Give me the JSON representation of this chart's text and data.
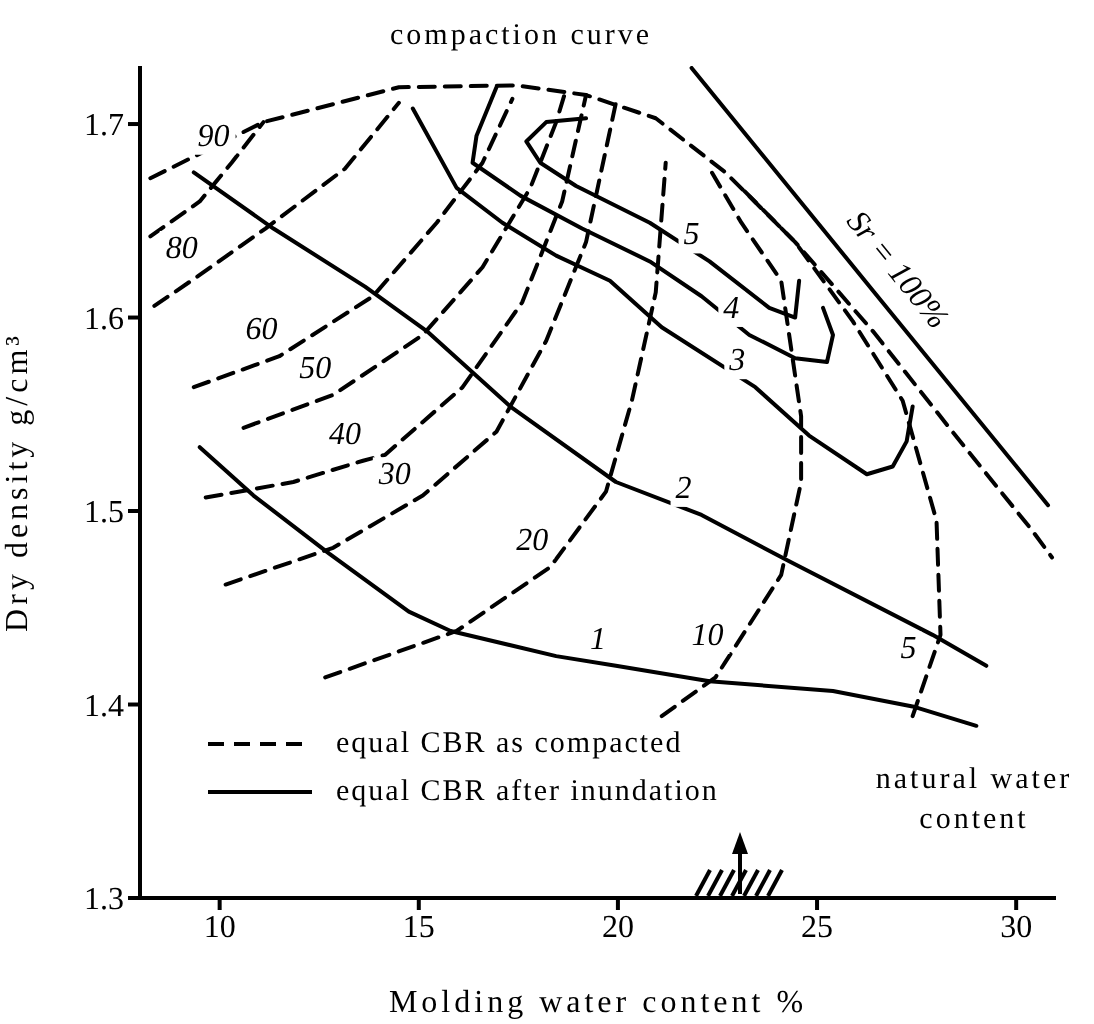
{
  "chart_data": {
    "type": "line",
    "xlabel": "Molding water content %",
    "ylabel": "Dry density g/cm³",
    "xlim": [
      8,
      31
    ],
    "xticks": [
      10,
      15,
      20,
      25,
      30
    ],
    "ylim": [
      1.3,
      1.73
    ],
    "yticks": [
      1.3,
      1.4,
      1.5,
      1.6,
      1.7
    ],
    "legend": "bottom left",
    "marker": "none",
    "series": [
      {
        "name": "equal CBR as compacted",
        "color": "#000000",
        "line_style": "dashed",
        "x": [
          8.26,
          11.1,
          14.5,
          17.45,
          19.2,
          20.95,
          22.7,
          24.45,
          26.4,
          28.4,
          30.4,
          30.9
        ],
        "values": [
          1.672,
          1.701,
          1.719,
          1.72,
          1.715,
          1.703,
          1.675,
          1.639,
          1.593,
          1.541,
          1.49,
          1.476
        ]
      },
      {
        "color": "#000000",
        "line_style": "dashed",
        "x": [
          8.26,
          9.5,
          10.3,
          11.1
        ],
        "values": [
          1.642,
          1.66,
          1.68,
          1.701
        ]
      },
      {
        "color": "#000000",
        "line_style": "dashed",
        "x": [
          8.36,
          9.5,
          11.15,
          13.15,
          14.5
        ],
        "values": [
          1.606,
          1.622,
          1.646,
          1.677,
          1.711
        ]
      },
      {
        "color": "#000000",
        "line_style": "dashed",
        "x": [
          9.35,
          11.5,
          13.85,
          15.45,
          16.6,
          17.35
        ],
        "values": [
          1.564,
          1.58,
          1.611,
          1.649,
          1.68,
          1.713
        ]
      },
      {
        "color": "#000000",
        "line_style": "dashed",
        "x": [
          10.6,
          12.85,
          15.1,
          16.6,
          17.8,
          18.45,
          18.7
        ],
        "values": [
          1.543,
          1.56,
          1.591,
          1.626,
          1.667,
          1.701,
          1.718
        ]
      },
      {
        "color": "#000000",
        "line_style": "dashed",
        "x": [
          9.65,
          11.85,
          13.6,
          14.15,
          16.1,
          17.6,
          18.6,
          19.2
        ],
        "values": [
          1.507,
          1.515,
          1.526,
          1.529,
          1.564,
          1.608,
          1.66,
          1.715
        ]
      },
      {
        "color": "#000000",
        "line_style": "dashed",
        "x": [
          10.15,
          12.85,
          14.85,
          15.1,
          16.95,
          18.2,
          19.2,
          19.95
        ],
        "values": [
          1.462,
          1.481,
          1.505,
          1.508,
          1.541,
          1.588,
          1.639,
          1.711
        ]
      },
      {
        "color": "#000000",
        "line_style": "dashed",
        "x": [
          12.65,
          15.95,
          18.3,
          19.7,
          20.35,
          20.95,
          21.2
        ],
        "values": [
          1.414,
          1.438,
          1.471,
          1.51,
          1.557,
          1.613,
          1.68
        ]
      },
      {
        "color": "#000000",
        "line_style": "dashed",
        "x": [
          21.1,
          22.45,
          22.7,
          24.1,
          24.6,
          24.6,
          24.1,
          23.1,
          22.3
        ],
        "values": [
          1.394,
          1.414,
          1.422,
          1.467,
          1.515,
          1.549,
          1.619,
          1.649,
          1.677
        ]
      },
      {
        "color": "#000000",
        "line_style": "dashed",
        "x": [
          27.4,
          27.75,
          28.1,
          28.0,
          27.15,
          25.9,
          24.45,
          23.05
        ],
        "values": [
          1.394,
          1.415,
          1.436,
          1.495,
          1.557,
          1.598,
          1.639,
          1.668
        ]
      },
      {
        "name": "equal CBR after inundation",
        "color": "#000000",
        "line_style": "solid",
        "x": [
          9.5,
          10.85,
          12.75,
          14.75,
          15.8,
          18.45,
          19.95,
          22.3,
          25.4,
          27.4,
          29.0
        ],
        "values": [
          1.533,
          1.508,
          1.478,
          1.448,
          1.438,
          1.425,
          1.42,
          1.412,
          1.407,
          1.399,
          1.389
        ]
      },
      {
        "color": "#000000",
        "line_style": "solid",
        "x": [
          9.35,
          11.35,
          13.65,
          15.2,
          17.3,
          19.95,
          22.1,
          24.3,
          27.9,
          29.25
        ],
        "values": [
          1.675,
          1.646,
          1.616,
          1.593,
          1.554,
          1.515,
          1.498,
          1.474,
          1.436,
          1.42
        ]
      },
      {
        "color": "#000000",
        "line_style": "solid",
        "x": [
          14.85,
          15.95,
          17.1,
          18.45,
          19.8,
          21.1,
          23.45,
          24.8,
          26.25,
          26.9,
          27.25,
          27.4
        ],
        "values": [
          1.708,
          1.667,
          1.649,
          1.632,
          1.619,
          1.595,
          1.564,
          1.539,
          1.519,
          1.523,
          1.536,
          1.554
        ]
      },
      {
        "color": "#000000",
        "line_style": "solid",
        "x": [
          16.95,
          16.45,
          16.35,
          17.55,
          19.1,
          20.8,
          22.1,
          23.3,
          24.45,
          25.25,
          25.4,
          25.15
        ],
        "values": [
          1.719,
          1.694,
          1.68,
          1.663,
          1.646,
          1.629,
          1.611,
          1.591,
          1.579,
          1.577,
          1.591,
          1.605
        ]
      },
      {
        "color": "#000000",
        "line_style": "solid",
        "x": [
          19.2,
          18.2,
          17.7,
          18.05,
          18.95,
          20.8,
          22.3,
          23.8,
          24.45,
          24.55
        ],
        "values": [
          1.703,
          1.701,
          1.691,
          1.68,
          1.668,
          1.649,
          1.629,
          1.605,
          1.6,
          1.619
        ]
      },
      {
        "color": "#000000",
        "line_style": "solid",
        "x": [
          21.85,
          26.4,
          30.8
        ],
        "values": [
          1.729,
          1.614,
          1.503
        ]
      }
    ],
    "annotations": [
      "compaction curve",
      {
        "text": "90",
        "x": 10.3,
        "y": 1.68
      },
      {
        "text": "80",
        "x": 9.5,
        "y": 1.622
      },
      {
        "text": "60",
        "x": 11.5,
        "y": 1.58
      },
      {
        "text": "50",
        "x": 12.85,
        "y": 1.56
      },
      {
        "text": "40",
        "x": 13.6,
        "y": 1.526
      },
      {
        "text": "30",
        "x": 14.85,
        "y": 1.505
      },
      {
        "text": "20",
        "x": 18.3,
        "y": 1.471
      },
      {
        "text": "10",
        "x": 22.7,
        "y": 1.422
      },
      {
        "text": "5",
        "x": 27.75,
        "y": 1.415
      },
      {
        "text": "1",
        "x": 19.95,
        "y": 1.42
      },
      {
        "text": "2",
        "x": 22.1,
        "y": 1.498
      },
      {
        "text": "3",
        "x": 23.45,
        "y": 1.564
      },
      {
        "text": "4",
        "x": 23.3,
        "y": 1.591
      },
      {
        "text": "5",
        "x": 22.3,
        "y": 1.629
      },
      {
        "text": "Sr = 100%",
        "x": 26.4,
        "y": 1.614
      },
      "natural water content"
    ]
  }
}
